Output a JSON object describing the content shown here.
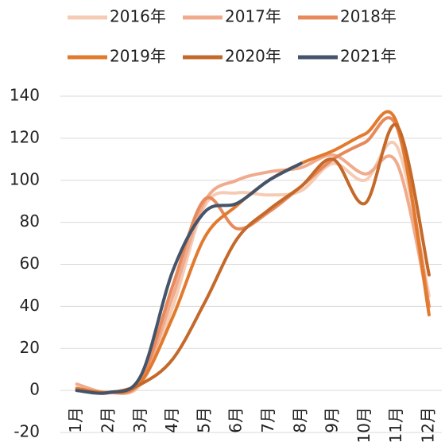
{
  "chart_data": {
    "type": "line",
    "categories": [
      "1月",
      "2月",
      "3月",
      "4月",
      "5月",
      "6月",
      "7月",
      "8月",
      "9月",
      "10月",
      "11月",
      "12月"
    ],
    "series": [
      {
        "name": "2016年",
        "color": "#f6cbb4",
        "values": [
          1,
          -1,
          3,
          40,
          88,
          94,
          93,
          95,
          108,
          100,
          116,
          45
        ]
      },
      {
        "name": "2017年",
        "color": "#f0aa8c",
        "values": [
          3,
          -1,
          4,
          45,
          90,
          100,
          104,
          106,
          112,
          103,
          108,
          40
        ]
      },
      {
        "name": "2018年",
        "color": "#e8895c",
        "values": [
          1,
          -1,
          5,
          50,
          91,
          77,
          85,
          97,
          110,
          118,
          125,
          40
        ]
      },
      {
        "name": "2019年",
        "color": "#e27a2e",
        "values": [
          1,
          -1,
          4,
          35,
          73,
          88,
          100,
          108,
          114,
          122,
          127,
          36
        ]
      },
      {
        "name": "2020年",
        "color": "#c4692a",
        "values": [
          0,
          -1,
          3,
          15,
          42,
          72,
          86,
          97,
          110,
          89,
          126,
          55
        ]
      },
      {
        "name": "2021年",
        "color": "#44546a",
        "values": [
          0,
          -1,
          7,
          57,
          85,
          89,
          100,
          108,
          null,
          null,
          null,
          null
        ]
      }
    ],
    "ylim": [
      -20,
      140
    ],
    "yticks": [
      -20,
      0,
      20,
      40,
      60,
      80,
      100,
      120,
      140
    ],
    "grid": true
  }
}
